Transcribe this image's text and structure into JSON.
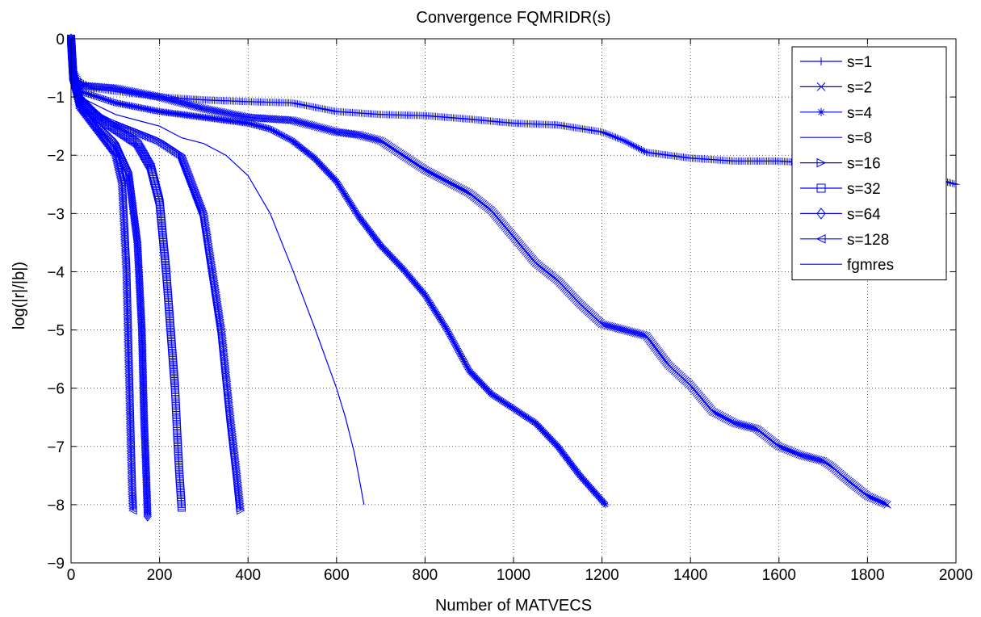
{
  "chart_data": {
    "type": "line",
    "title": "Convergence FQMRIDR(s)",
    "xlabel": "Number of MATVECS",
    "ylabel": "log(|r|/|b|)",
    "xlim": [
      0,
      2000
    ],
    "ylim": [
      -9,
      0
    ],
    "xticks": [
      0,
      200,
      400,
      600,
      800,
      1000,
      1200,
      1400,
      1600,
      1800,
      2000
    ],
    "yticks": [
      0,
      -1,
      -2,
      -3,
      -4,
      -5,
      -6,
      -7,
      -8,
      -9
    ],
    "grid": true,
    "grid_style": "dotted",
    "legend_position": "top-right",
    "color": "#0000ff",
    "series": [
      {
        "name": "s=1",
        "marker": "plus",
        "x": [
          0,
          5,
          10,
          50,
          100,
          200,
          300,
          400,
          500,
          600,
          700,
          800,
          900,
          1000,
          1100,
          1200,
          1250,
          1300,
          1400,
          1500,
          1600,
          1700,
          1800,
          1900,
          2000
        ],
        "y": [
          0,
          -0.6,
          -0.7,
          -0.85,
          -0.9,
          -1.0,
          -1.05,
          -1.08,
          -1.1,
          -1.25,
          -1.3,
          -1.32,
          -1.38,
          -1.45,
          -1.48,
          -1.6,
          -1.75,
          -1.95,
          -2.05,
          -2.1,
          -2.1,
          -2.15,
          -2.15,
          -2.3,
          -2.5
        ]
      },
      {
        "name": "s=2",
        "marker": "x",
        "x": [
          0,
          5,
          20,
          100,
          200,
          300,
          400,
          500,
          550,
          600,
          650,
          700,
          750,
          800,
          850,
          900,
          950,
          1000,
          1050,
          1100,
          1150,
          1200,
          1250,
          1300,
          1350,
          1400,
          1450,
          1500,
          1550,
          1600,
          1650,
          1700,
          1720,
          1750,
          1800,
          1845
        ],
        "y": [
          0,
          -0.6,
          -0.8,
          -0.85,
          -1.0,
          -1.2,
          -1.35,
          -1.4,
          -1.5,
          -1.6,
          -1.65,
          -1.75,
          -2.0,
          -2.25,
          -2.45,
          -2.65,
          -2.95,
          -3.4,
          -3.85,
          -4.15,
          -4.55,
          -4.9,
          -5.0,
          -5.1,
          -5.6,
          -5.95,
          -6.4,
          -6.6,
          -6.7,
          -7.0,
          -7.15,
          -7.25,
          -7.35,
          -7.55,
          -7.85,
          -8.0
        ]
      },
      {
        "name": "s=4",
        "marker": "asterisk",
        "x": [
          0,
          5,
          20,
          100,
          200,
          300,
          400,
          450,
          500,
          550,
          600,
          650,
          700,
          750,
          800,
          850,
          900,
          950,
          1000,
          1050,
          1100,
          1150,
          1208
        ],
        "y": [
          0,
          -0.6,
          -0.9,
          -1.1,
          -1.25,
          -1.35,
          -1.45,
          -1.55,
          -1.75,
          -2.05,
          -2.45,
          -3.05,
          -3.55,
          -3.95,
          -4.4,
          -5.0,
          -5.7,
          -6.1,
          -6.35,
          -6.6,
          -7.0,
          -7.5,
          -8.0
        ]
      },
      {
        "name": "s=8",
        "marker": "circle",
        "x": [
          0,
          5,
          20,
          100,
          150,
          200,
          250,
          300,
          350,
          400,
          450,
          500,
          550,
          600,
          620,
          640,
          650,
          662
        ],
        "y": [
          0,
          -0.65,
          -1.0,
          -1.3,
          -1.4,
          -1.5,
          -1.7,
          -1.8,
          -2.0,
          -2.35,
          -3.0,
          -3.95,
          -4.95,
          -6.0,
          -6.5,
          -7.1,
          -7.5,
          -8.0
        ]
      },
      {
        "name": "s=16",
        "marker": "triangle-right",
        "x": [
          0,
          5,
          20,
          60,
          100,
          150,
          200,
          250,
          275,
          300,
          320,
          340,
          360,
          375,
          383
        ],
        "y": [
          0,
          -0.65,
          -1.0,
          -1.3,
          -1.45,
          -1.6,
          -1.75,
          -2.0,
          -2.5,
          -3.0,
          -4.0,
          -5.0,
          -6.5,
          -7.5,
          -8.1
        ]
      },
      {
        "name": "s=32",
        "marker": "square",
        "x": [
          0,
          5,
          20,
          60,
          100,
          150,
          180,
          200,
          215,
          225,
          235,
          240,
          245,
          250
        ],
        "y": [
          0,
          -0.65,
          -1.1,
          -1.35,
          -1.55,
          -1.8,
          -2.2,
          -2.8,
          -4.0,
          -5.0,
          -6.0,
          -6.8,
          -7.5,
          -8.05
        ]
      },
      {
        "name": "s=64",
        "marker": "diamond",
        "x": [
          0,
          5,
          20,
          60,
          100,
          130,
          150,
          160,
          165,
          170,
          173
        ],
        "y": [
          0,
          -0.65,
          -1.15,
          -1.5,
          -1.8,
          -2.3,
          -3.5,
          -5.0,
          -6.5,
          -7.5,
          -8.2
        ]
      },
      {
        "name": "s=128",
        "marker": "triangle-left",
        "x": [
          0,
          5,
          20,
          60,
          100,
          115,
          125,
          130,
          135,
          138,
          140
        ],
        "y": [
          0,
          -0.65,
          -1.2,
          -1.6,
          -2.0,
          -2.5,
          -4.0,
          -5.5,
          -7.0,
          -7.8,
          -8.1
        ]
      },
      {
        "name": "fgmres",
        "marker": "none",
        "x": [
          0,
          5,
          20,
          60,
          100,
          115,
          125,
          130,
          135,
          138,
          140
        ],
        "y": [
          0,
          -0.65,
          -1.2,
          -1.6,
          -2.0,
          -2.5,
          -4.0,
          -5.5,
          -7.0,
          -7.8,
          -8.1
        ]
      }
    ]
  }
}
